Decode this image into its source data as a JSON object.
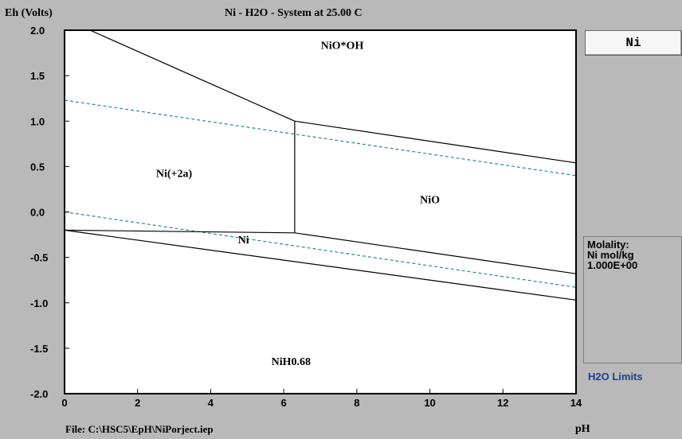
{
  "window": {
    "ylabel": "Eh (Volts)",
    "title": "Ni - H2O - System at 25.00 C",
    "file": "File: C:\\HSC5\\EpH\\NiPorject.iep",
    "xlabel": "pH"
  },
  "side_panel": {
    "element_button": "Ni",
    "molality_title": "Molality:",
    "molality_unit": "Ni mol/kg",
    "molality_value": "1.000E+00",
    "h2o_limits_link": "H2O Limits"
  },
  "colors": {
    "background": "#b9b9b9",
    "plot_bg": "#ffffff",
    "boundary": "#000000",
    "water_limit": "#2a8a8a",
    "link": "#1c3f8f"
  },
  "chart_data": {
    "type": "line",
    "title": "Ni - H2O - System at 25.00 C",
    "xlabel": "pH",
    "ylabel": "Eh (Volts)",
    "xlim": [
      0,
      14
    ],
    "ylim": [
      -2.0,
      2.0
    ],
    "xticks": [
      "0",
      "2",
      "4",
      "6",
      "8",
      "10",
      "12",
      "14"
    ],
    "yticks": [
      "2.0",
      "1.5",
      "1.0",
      "0.5",
      "0.0",
      "-0.5",
      "-1.0",
      "-1.5",
      "-2.0"
    ],
    "grid": false,
    "boundaries": [
      {
        "points": [
          [
            0.7,
            2.0
          ],
          [
            6.3,
            1.0
          ]
        ]
      },
      {
        "points": [
          [
            6.3,
            1.0
          ],
          [
            14,
            0.54
          ]
        ]
      },
      {
        "points": [
          [
            6.3,
            1.0
          ],
          [
            6.3,
            -0.23
          ]
        ]
      },
      {
        "points": [
          [
            0,
            -0.2
          ],
          [
            6.3,
            -0.23
          ]
        ]
      },
      {
        "points": [
          [
            6.3,
            -0.23
          ],
          [
            14,
            -0.68
          ]
        ]
      },
      {
        "points": [
          [
            0,
            -0.2
          ],
          [
            14,
            -0.97
          ]
        ]
      }
    ],
    "water_limits": [
      {
        "points": [
          [
            0,
            1.23
          ],
          [
            14,
            0.4
          ]
        ]
      },
      {
        "points": [
          [
            0,
            0.0
          ],
          [
            14,
            -0.83
          ]
        ]
      }
    ],
    "regions": [
      {
        "label": "NiO*OH",
        "x": 7.6,
        "y": 1.84
      },
      {
        "label": "Ni(+2a)",
        "x": 3.0,
        "y": 0.43
      },
      {
        "label": "NiO",
        "x": 10.0,
        "y": 0.14
      },
      {
        "label": "Ni",
        "x": 4.9,
        "y": -0.3
      },
      {
        "label": "NiH0.68",
        "x": 6.2,
        "y": -1.64
      }
    ]
  }
}
